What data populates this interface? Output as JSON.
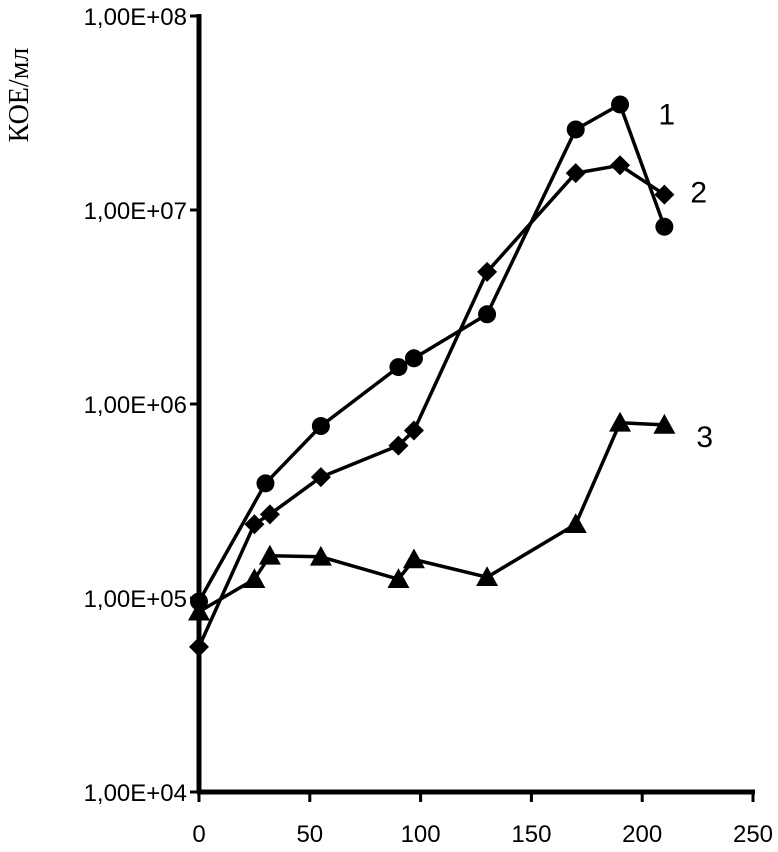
{
  "chart_data": {
    "type": "line",
    "ylabel": "КОЕ/мл",
    "xlabel": "",
    "title": "",
    "y_scale": "log",
    "ylim": [
      10000,
      100000000
    ],
    "y_ticks": [
      10000,
      100000,
      1000000,
      10000000,
      100000000
    ],
    "y_tick_labels": [
      "1,00E+04",
      "1,00E+05",
      "1,00E+06",
      "1,00E+07",
      "1,00E+08"
    ],
    "xlim": [
      0,
      250
    ],
    "x_ticks": [
      0,
      50,
      100,
      150,
      200,
      250
    ],
    "x_tick_labels": [
      "0",
      "50",
      "100",
      "150",
      "200",
      "250"
    ],
    "grid": false,
    "legend": "inline labels at line ends",
    "series": [
      {
        "label": "1",
        "marker": "circle",
        "color": "#000000",
        "x": [
          0,
          30,
          55,
          90,
          97,
          130,
          170,
          190,
          210
        ],
        "y": [
          96000,
          390000,
          770000,
          1550000,
          1720000,
          2900000,
          26000000,
          35000000,
          8200000
        ]
      },
      {
        "label": "2",
        "marker": "diamond",
        "color": "#000000",
        "x": [
          0,
          25,
          32,
          55,
          90,
          97,
          130,
          170,
          190,
          210
        ],
        "y": [
          56000,
          240000,
          270000,
          420000,
          610000,
          730000,
          4800000,
          15500000,
          17000000,
          12000000
        ]
      },
      {
        "label": "3",
        "marker": "triangle",
        "color": "#000000",
        "x": [
          0,
          25,
          32,
          55,
          90,
          97,
          130,
          170,
          190,
          210
        ],
        "y": [
          85000,
          125000,
          165000,
          163000,
          125000,
          158000,
          128000,
          240000,
          800000,
          780000
        ]
      }
    ]
  }
}
